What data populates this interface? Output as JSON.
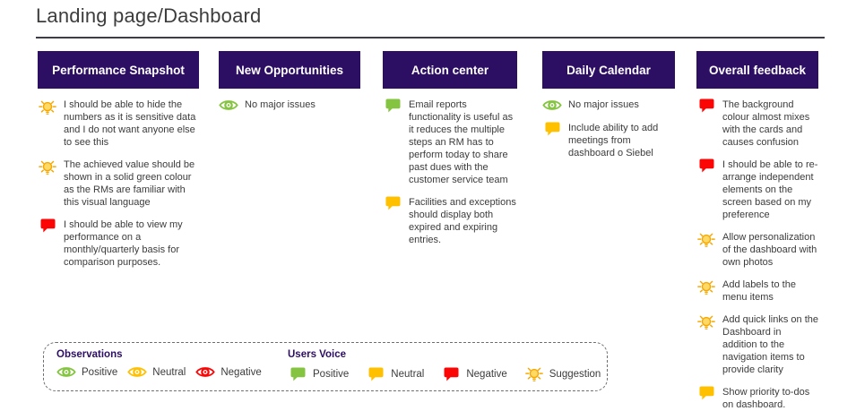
{
  "page": {
    "title": "Landing page/Dashboard"
  },
  "colors": {
    "header_bg": "#2c0e63",
    "label_purple": "#2c0e63",
    "positive": "#85c441",
    "neutral": "#ffc000",
    "negative": "#fb0505",
    "suggestion": "#f7a800",
    "suggestion_fill": "#ffd966",
    "body_text": "#3b3b3b"
  },
  "columns": [
    {
      "title": "Performance Snapshot",
      "items": [
        {
          "icon": "suggestion",
          "text": "I should be able to hide the numbers as it is sensitive data and I do not want anyone else to see this"
        },
        {
          "icon": "suggestion",
          "text": "The achieved value should be shown in a solid green colour as the RMs are familiar with this visual language"
        },
        {
          "icon": "voice-negative",
          "text": "I should be able to view my performance on a monthly/quarterly basis for comparison purposes."
        }
      ]
    },
    {
      "title": "New Opportunities",
      "items": [
        {
          "icon": "obs-positive",
          "text": "No major issues"
        }
      ]
    },
    {
      "title": "Action center",
      "items": [
        {
          "icon": "voice-positive",
          "text": "Email reports functionality is useful as it reduces the multiple steps an RM has to perform today to share past dues with the customer service team"
        },
        {
          "icon": "voice-neutral",
          "text": "Facilities and exceptions should display both expired and expiring entries."
        }
      ]
    },
    {
      "title": "Daily Calendar",
      "items": [
        {
          "icon": "obs-positive",
          "text": "No major issues"
        },
        {
          "icon": "voice-neutral",
          "text": "Include ability to add meetings from dashboard o Siebel"
        }
      ]
    },
    {
      "title": "Overall feedback",
      "items": [
        {
          "icon": "voice-negative",
          "text": "The background colour almost mixes with the cards and causes confusion"
        },
        {
          "icon": "voice-negative",
          "text": "I should be able to re-arrange independent elements on the screen based on my preference"
        },
        {
          "icon": "suggestion",
          "text": "Allow personalization of the dashboard with own photos"
        },
        {
          "icon": "suggestion",
          "text": "Add labels to the menu items"
        },
        {
          "icon": "suggestion",
          "text": "Add quick links on the Dashboard in addition to the navigation items to provide clarity"
        },
        {
          "icon": "voice-neutral",
          "text": "Show priority to-dos on dashboard."
        }
      ]
    }
  ],
  "legend": {
    "observations": {
      "label": "Observations",
      "entries": [
        {
          "icon": "obs-positive",
          "label": "Positive"
        },
        {
          "icon": "obs-neutral",
          "label": "Neutral"
        },
        {
          "icon": "obs-negative",
          "label": "Negative"
        }
      ]
    },
    "users_voice": {
      "label": "Users Voice",
      "entries": [
        {
          "icon": "voice-positive",
          "label": "Positive"
        },
        {
          "icon": "voice-neutral",
          "label": "Neutral"
        },
        {
          "icon": "voice-negative",
          "label": "Negative"
        },
        {
          "icon": "suggestion",
          "label": "Suggestion"
        }
      ]
    }
  }
}
